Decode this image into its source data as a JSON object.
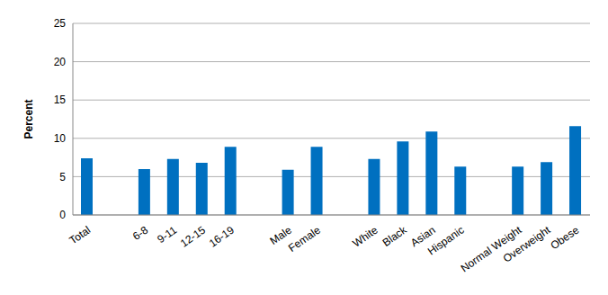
{
  "chart_data": {
    "type": "bar",
    "ylabel": "Percent",
    "categories": [
      "Total",
      null,
      "6-8",
      "9-11",
      "12-15",
      "16-19",
      null,
      "Male",
      "Female",
      null,
      "White",
      "Black",
      "Asian",
      "Hispanic",
      null,
      "Normal Weight",
      "Overweight",
      "Obese"
    ],
    "values": [
      7.4,
      null,
      6.0,
      7.3,
      6.8,
      8.9,
      null,
      5.9,
      8.9,
      null,
      7.3,
      9.6,
      10.9,
      6.3,
      null,
      6.3,
      6.9,
      11.6
    ],
    "color": "#0070c0",
    "ylim": [
      0,
      25
    ],
    "yticks": [
      0,
      5,
      10,
      15,
      20,
      25
    ],
    "grid": true
  }
}
